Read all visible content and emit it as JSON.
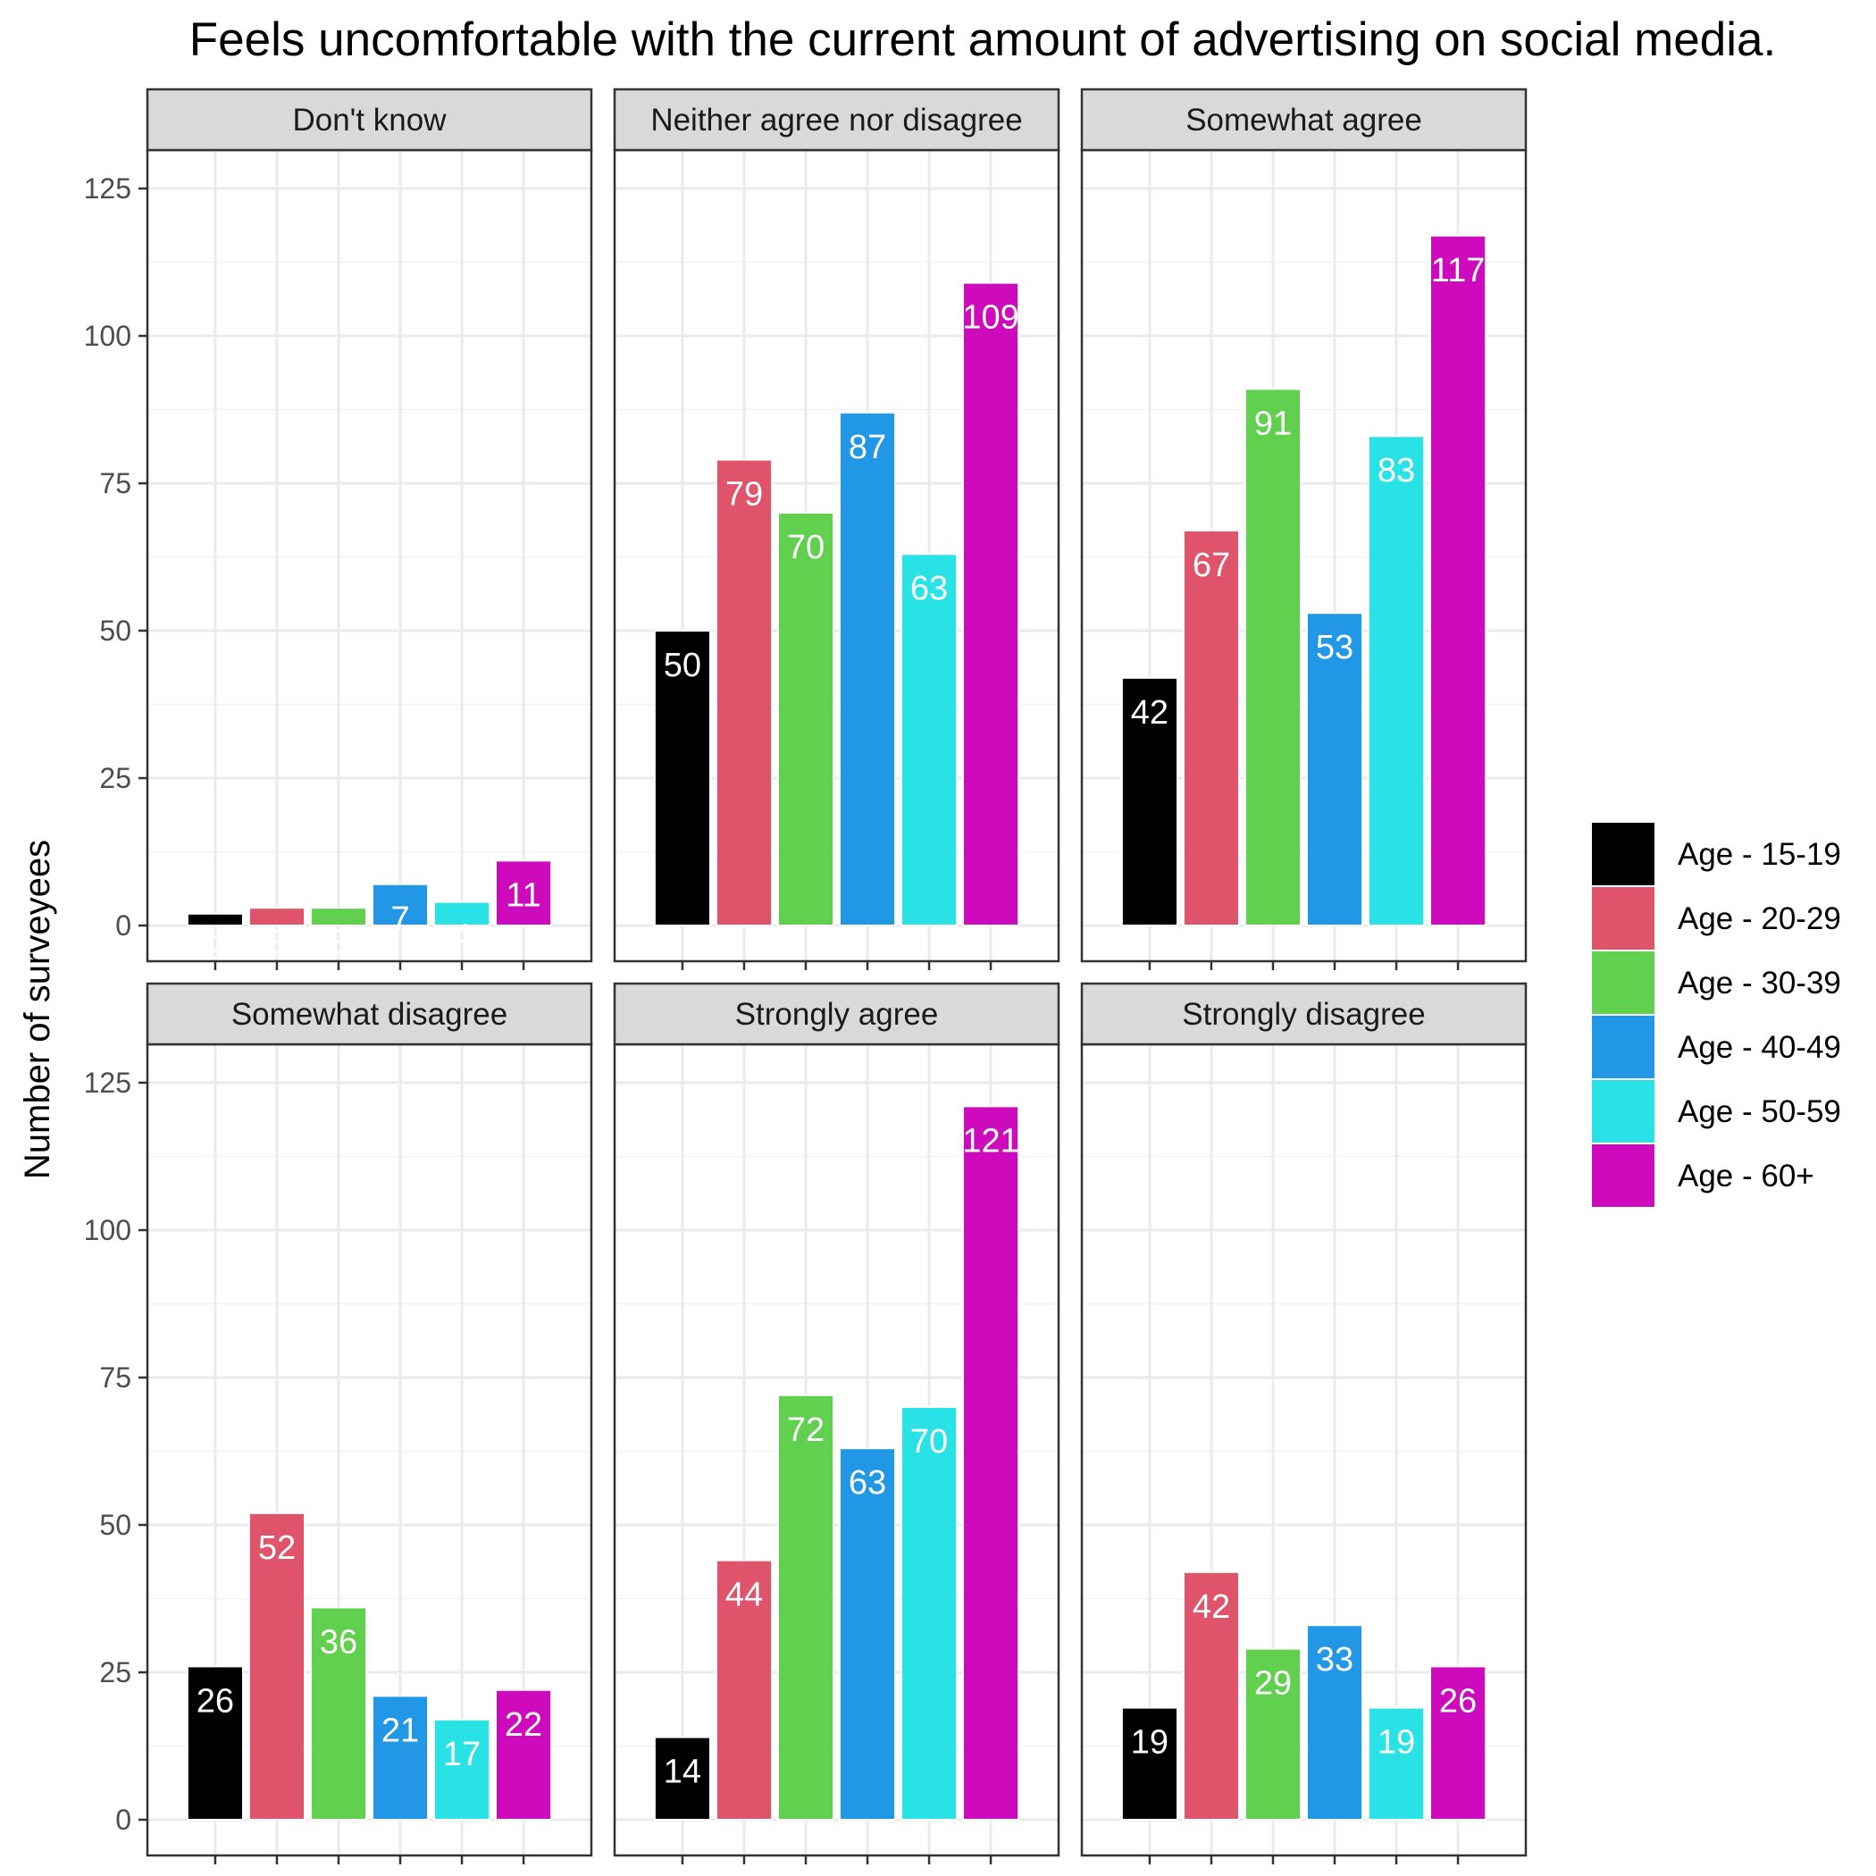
{
  "chart_data": {
    "type": "bar",
    "title": "Feels uncomfortable with the current amount of advertising on social media.",
    "xlabel": "",
    "ylabel": "Number of surveyees",
    "ylim": [
      0,
      130
    ],
    "yticks": [
      0,
      25,
      50,
      75,
      100,
      125
    ],
    "grid": true,
    "legend_position": "right",
    "series": [
      {
        "name": "Age - 15-19",
        "color": "#000000"
      },
      {
        "name": "Age - 20-29",
        "color": "#DF536B"
      },
      {
        "name": "Age - 30-39",
        "color": "#61D04F"
      },
      {
        "name": "Age - 40-49",
        "color": "#2297E6"
      },
      {
        "name": "Age - 50-59",
        "color": "#28E2E5"
      },
      {
        "name": "Age - 60+",
        "color": "#CD0BBC"
      }
    ],
    "panels": [
      {
        "title": "Don't know",
        "values": [
          2,
          3,
          3,
          7,
          4,
          11
        ]
      },
      {
        "title": "Neither agree nor disagree",
        "values": [
          50,
          79,
          70,
          87,
          63,
          109
        ]
      },
      {
        "title": "Somewhat agree",
        "values": [
          42,
          67,
          91,
          53,
          83,
          117
        ]
      },
      {
        "title": "Somewhat disagree",
        "values": [
          26,
          52,
          36,
          21,
          17,
          22
        ]
      },
      {
        "title": "Strongly agree",
        "values": [
          14,
          44,
          72,
          63,
          70,
          121
        ]
      },
      {
        "title": "Strongly disagree",
        "values": [
          19,
          42,
          29,
          33,
          19,
          26
        ]
      }
    ]
  }
}
